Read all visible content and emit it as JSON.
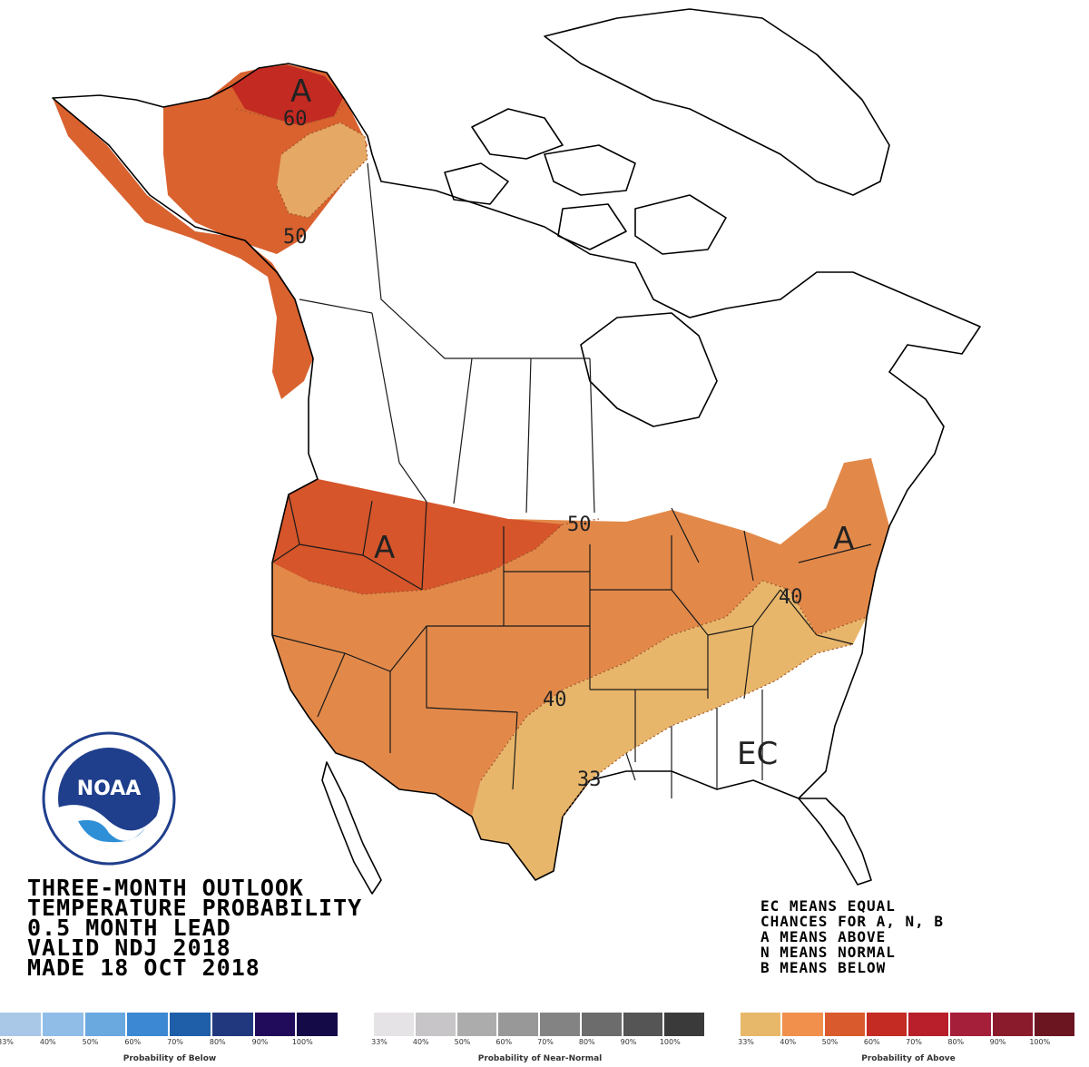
{
  "title_lines": [
    "THREE-MONTH OUTLOOK",
    "TEMPERATURE PROBABILITY",
    "0.5 MONTH LEAD",
    "VALID NDJ 2018",
    "MADE 18 OCT 2018"
  ],
  "legend_note": [
    "EC MEANS EQUAL",
    "CHANCES FOR A, N, B",
    "A MEANS ABOVE",
    "N MEANS NORMAL",
    "B MEANS BELOW"
  ],
  "map_labels": {
    "alaska_above": "A",
    "alaska_60": "60",
    "alaska_50": "50",
    "northwest_above": "A",
    "northern_plains_50": "50",
    "northeast_above": "A",
    "northeast_40": "40",
    "southern_plains_40": "40",
    "texas_33": "33",
    "southeast_ec": "EC"
  },
  "categories": {
    "above_near_33_40": "#e8b86a",
    "above_40_50": "#e0904c",
    "above_50_60": "#d65a2e",
    "above_60_70": "#c42b23"
  },
  "noaa_logo_text": "NOAA",
  "color_bars": [
    {
      "caption": "Probability of Below",
      "colors": [
        "#a9c8e8",
        "#8fbde8",
        "#6aa8e0",
        "#3d88d2",
        "#1f5ea8",
        "#22387e",
        "#200c5a",
        "#140a48"
      ],
      "ticks": [
        "33%",
        "40%",
        "50%",
        "60%",
        "70%",
        "80%",
        "90%",
        "100%"
      ]
    },
    {
      "caption": "Probability of Near-Normal",
      "colors": [
        "#e6e3e6",
        "#c7c5c7",
        "#adacad",
        "#989898",
        "#838383",
        "#6c6c6c",
        "#555555",
        "#3a3a3a"
      ],
      "ticks": [
        "33%",
        "40%",
        "50%",
        "60%",
        "70%",
        "80%",
        "90%",
        "100%"
      ]
    },
    {
      "caption": "Probability of Above",
      "colors": [
        "#e8b86a",
        "#f0904c",
        "#d95a2c",
        "#c42b23",
        "#b81f2a",
        "#a51f3a",
        "#8a1b2c",
        "#6a1520"
      ],
      "ticks": [
        "33%",
        "40%",
        "50%",
        "60%",
        "70%",
        "80%",
        "90%",
        "100%"
      ]
    }
  ]
}
